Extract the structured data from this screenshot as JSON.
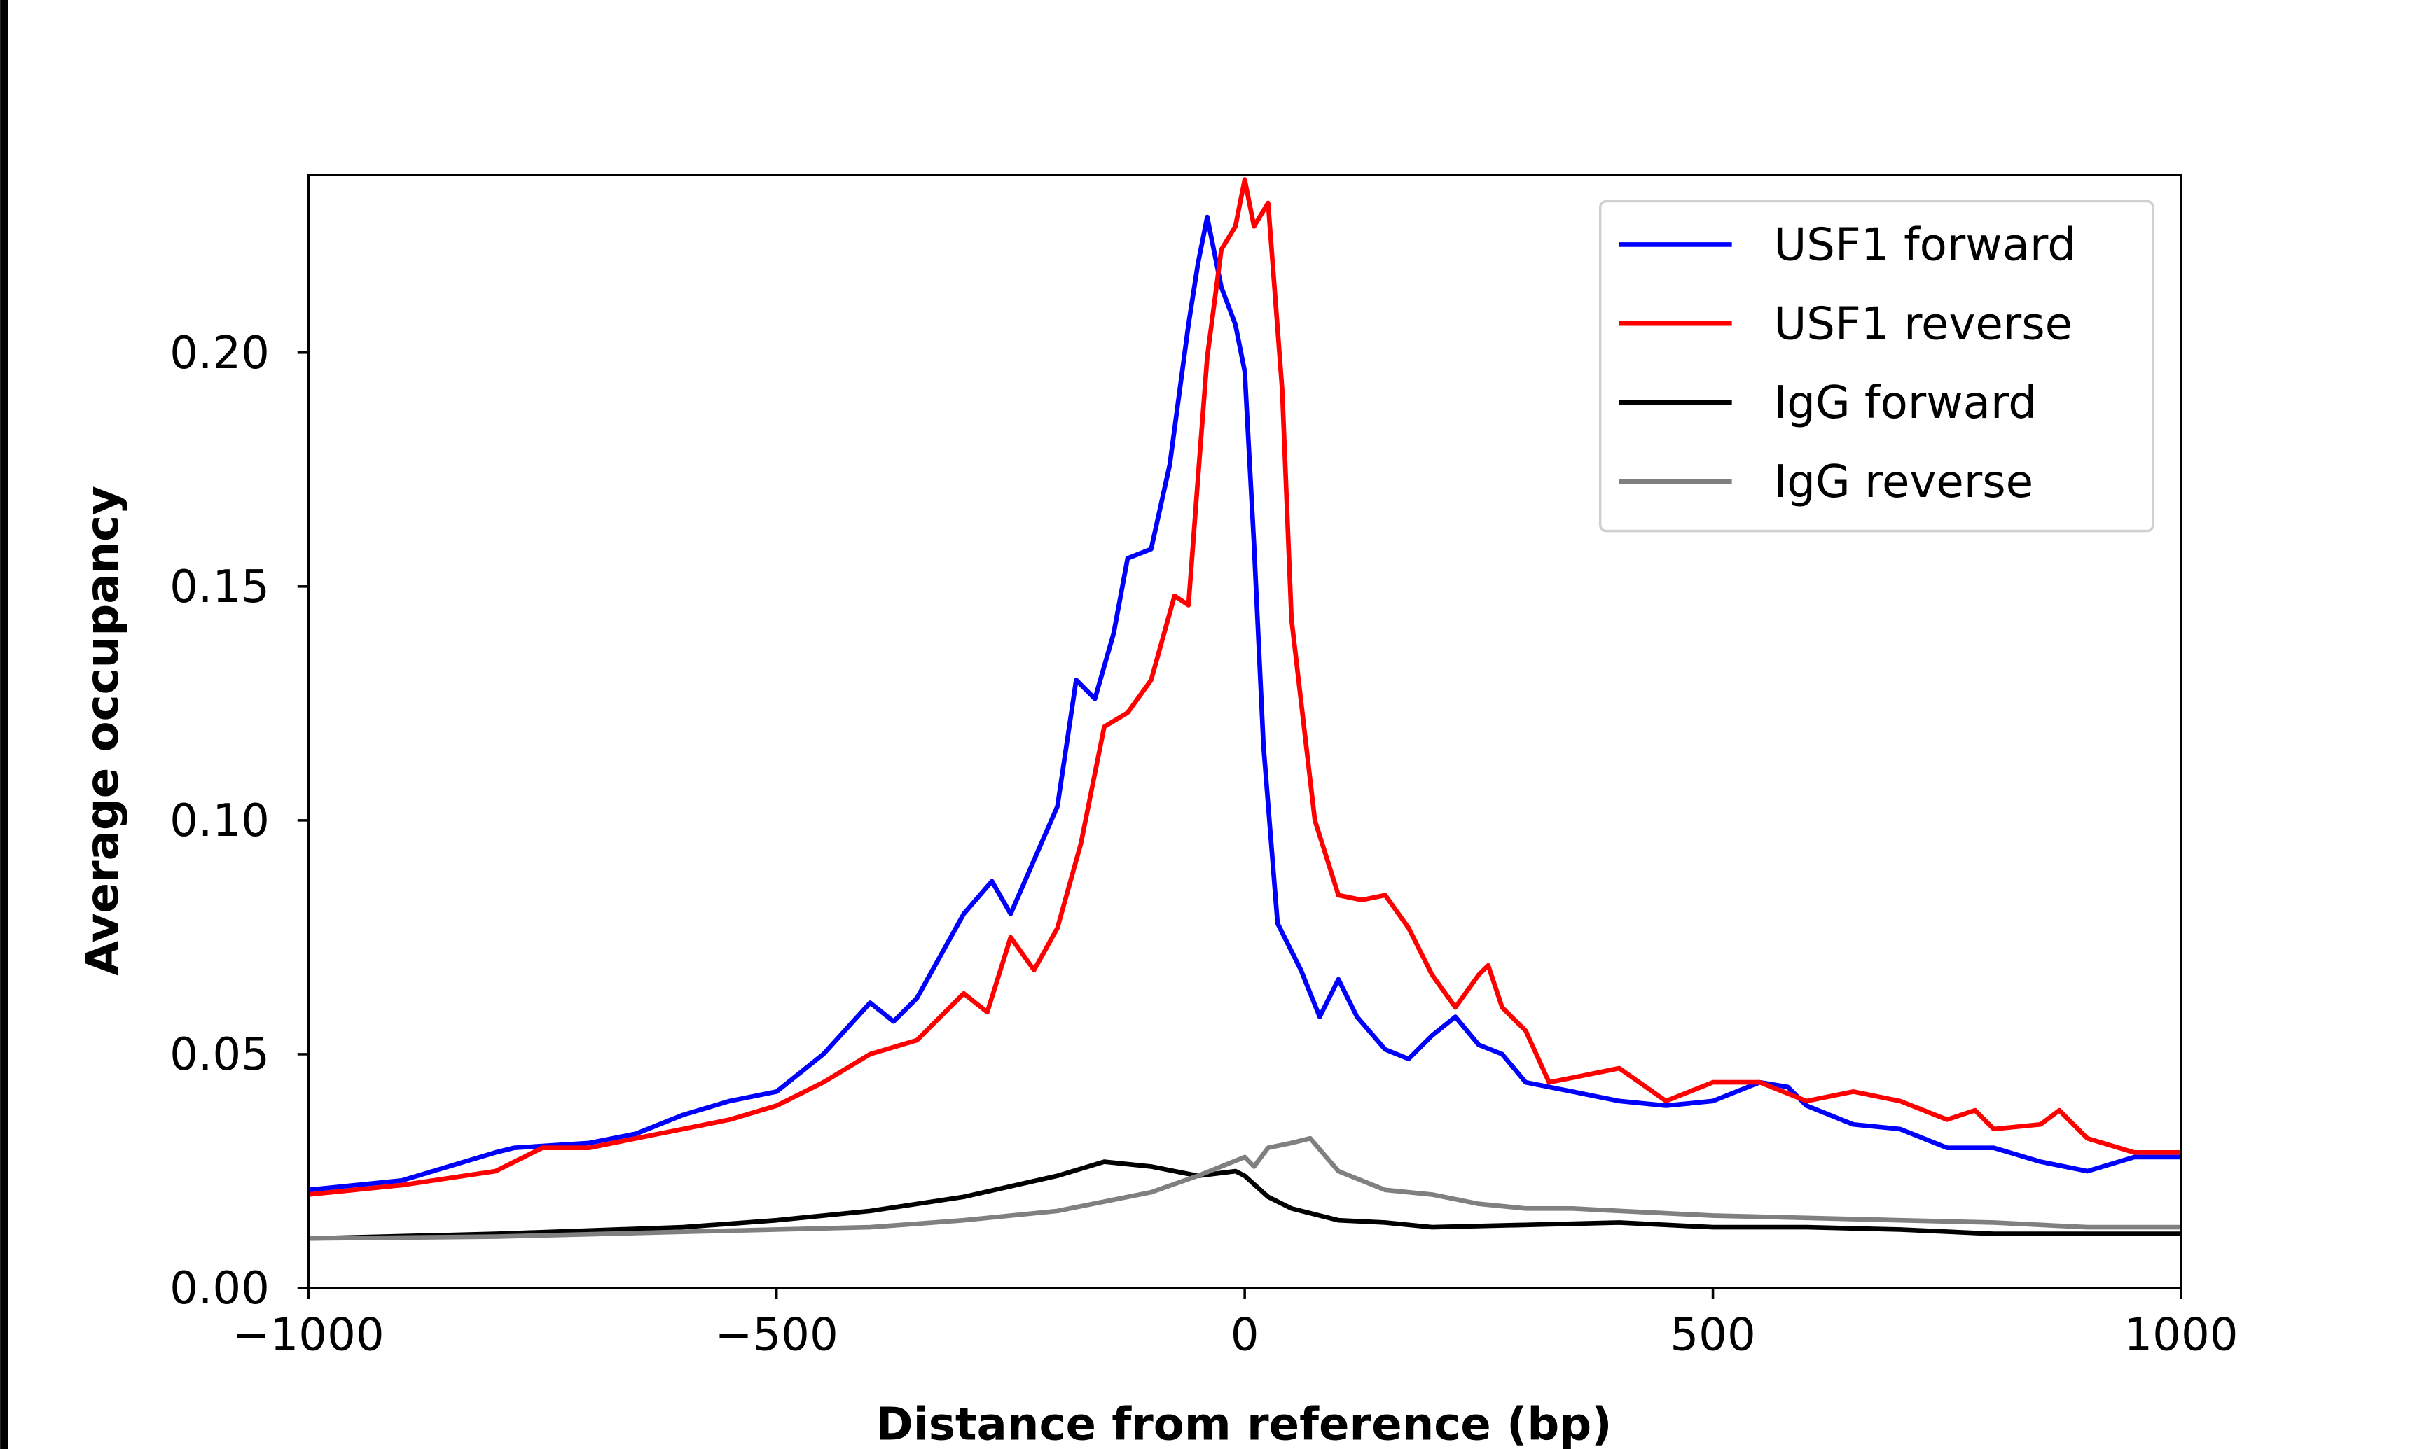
{
  "chart_data": {
    "type": "line",
    "title": "",
    "xlabel": "Distance from reference (bp)",
    "ylabel": "Average occupancy",
    "xlim": [
      -1000,
      1000
    ],
    "ylim": [
      0,
      0.238
    ],
    "xticks": [
      -1000,
      -500,
      0,
      500,
      1000
    ],
    "xtick_labels": [
      "−1000",
      "−500",
      "0",
      "500",
      "1000"
    ],
    "yticks": [
      0.0,
      0.05,
      0.1,
      0.15,
      0.2
    ],
    "ytick_labels": [
      "0.00",
      "0.05",
      "0.10",
      "0.15",
      "0.20"
    ],
    "grid": false,
    "legend_position": "top-right",
    "series": [
      {
        "name": "USF1 forward",
        "color": "#0000ff",
        "x": [
          -1000,
          -900,
          -800,
          -780,
          -700,
          -650,
          -600,
          -550,
          -500,
          -450,
          -400,
          -375,
          -350,
          -300,
          -270,
          -250,
          -200,
          -180,
          -160,
          -140,
          -125,
          -100,
          -80,
          -60,
          -50,
          -40,
          -25,
          -10,
          0,
          10,
          20,
          35,
          60,
          80,
          100,
          120,
          150,
          175,
          200,
          225,
          250,
          275,
          300,
          350,
          400,
          450,
          500,
          550,
          580,
          600,
          650,
          700,
          750,
          800,
          850,
          900,
          950,
          1000
        ],
        "y": [
          0.021,
          0.023,
          0.029,
          0.03,
          0.031,
          0.033,
          0.037,
          0.04,
          0.042,
          0.05,
          0.061,
          0.057,
          0.062,
          0.08,
          0.087,
          0.08,
          0.103,
          0.13,
          0.126,
          0.14,
          0.156,
          0.158,
          0.176,
          0.206,
          0.219,
          0.229,
          0.214,
          0.206,
          0.196,
          0.159,
          0.116,
          0.078,
          0.068,
          0.058,
          0.066,
          0.058,
          0.051,
          0.049,
          0.054,
          0.058,
          0.052,
          0.05,
          0.044,
          0.042,
          0.04,
          0.039,
          0.04,
          0.044,
          0.043,
          0.039,
          0.035,
          0.034,
          0.03,
          0.03,
          0.027,
          0.025,
          0.028,
          0.028
        ]
      },
      {
        "name": "USF1 reverse",
        "color": "#ff0000",
        "x": [
          -1000,
          -900,
          -800,
          -750,
          -700,
          -650,
          -600,
          -550,
          -500,
          -450,
          -400,
          -350,
          -300,
          -275,
          -250,
          -225,
          -200,
          -175,
          -150,
          -125,
          -100,
          -75,
          -60,
          -50,
          -40,
          -25,
          -10,
          0,
          10,
          25,
          40,
          50,
          75,
          100,
          125,
          150,
          175,
          200,
          225,
          250,
          260,
          275,
          300,
          325,
          350,
          400,
          450,
          500,
          550,
          600,
          650,
          700,
          750,
          780,
          800,
          850,
          870,
          900,
          950,
          1000
        ],
        "y": [
          0.02,
          0.022,
          0.025,
          0.03,
          0.03,
          0.032,
          0.034,
          0.036,
          0.039,
          0.044,
          0.05,
          0.053,
          0.063,
          0.059,
          0.075,
          0.068,
          0.077,
          0.095,
          0.12,
          0.123,
          0.13,
          0.148,
          0.146,
          0.173,
          0.199,
          0.222,
          0.227,
          0.237,
          0.227,
          0.232,
          0.192,
          0.143,
          0.1,
          0.084,
          0.083,
          0.084,
          0.077,
          0.067,
          0.06,
          0.067,
          0.069,
          0.06,
          0.055,
          0.044,
          0.045,
          0.047,
          0.04,
          0.044,
          0.044,
          0.04,
          0.042,
          0.04,
          0.036,
          0.038,
          0.034,
          0.035,
          0.038,
          0.032,
          0.029,
          0.029
        ]
      },
      {
        "name": "IgG forward",
        "color": "#000000",
        "x": [
          -1000,
          -800,
          -600,
          -500,
          -400,
          -300,
          -200,
          -150,
          -100,
          -50,
          -10,
          0,
          25,
          50,
          100,
          150,
          200,
          300,
          400,
          500,
          600,
          700,
          800,
          900,
          1000
        ],
        "y": [
          0.0106,
          0.0116,
          0.013,
          0.0145,
          0.0165,
          0.0195,
          0.024,
          0.027,
          0.026,
          0.024,
          0.025,
          0.024,
          0.0195,
          0.017,
          0.0145,
          0.014,
          0.013,
          0.0135,
          0.014,
          0.013,
          0.013,
          0.0125,
          0.0116,
          0.0116,
          0.0116
        ]
      },
      {
        "name": "IgG reverse",
        "color": "#808080",
        "x": [
          -1000,
          -800,
          -600,
          -400,
          -300,
          -200,
          -100,
          -50,
          0,
          10,
          25,
          50,
          70,
          100,
          150,
          200,
          250,
          300,
          350,
          400,
          500,
          600,
          700,
          800,
          900,
          1000
        ],
        "y": [
          0.0106,
          0.011,
          0.012,
          0.013,
          0.0145,
          0.0165,
          0.0205,
          0.024,
          0.028,
          0.026,
          0.03,
          0.031,
          0.032,
          0.025,
          0.021,
          0.02,
          0.018,
          0.017,
          0.017,
          0.0165,
          0.0155,
          0.015,
          0.0145,
          0.014,
          0.013,
          0.013
        ]
      }
    ]
  }
}
